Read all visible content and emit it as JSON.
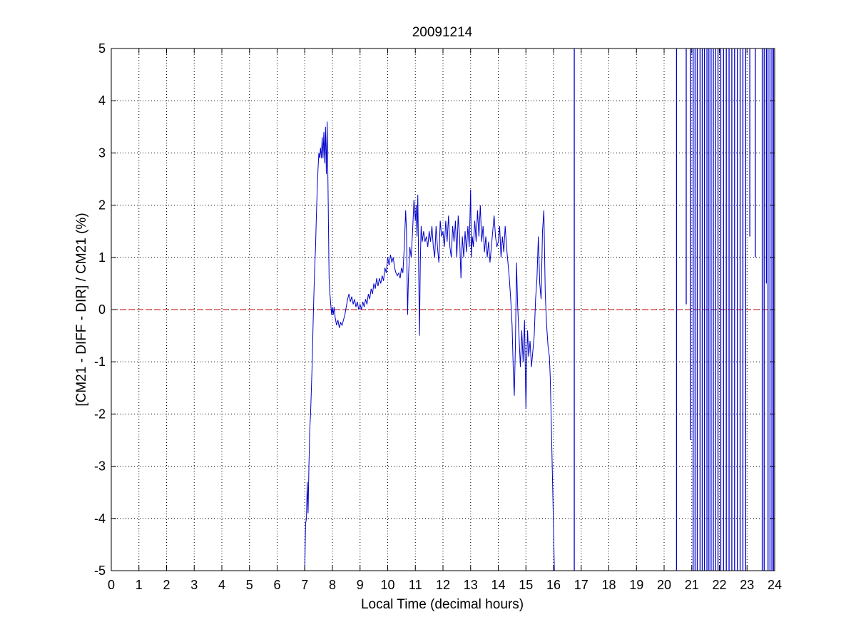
{
  "chart_data": {
    "type": "line",
    "title": "20091214",
    "xlabel": "Local Time (decimal hours)",
    "ylabel": "[CM21 - DIFF - DIR] / CM21 (%)",
    "xlim": [
      0,
      24
    ],
    "ylim": [
      -5,
      5
    ],
    "xticks": [
      0,
      1,
      2,
      3,
      4,
      5,
      6,
      7,
      8,
      9,
      10,
      11,
      12,
      13,
      14,
      15,
      16,
      17,
      18,
      19,
      20,
      21,
      22,
      23,
      24
    ],
    "yticks": [
      5,
      4,
      3,
      2,
      1,
      0,
      -1,
      -2,
      -3,
      -4,
      -5
    ],
    "grid": true,
    "series_color": "#0000cc",
    "zero_line": {
      "y": 0,
      "color": "#cc0000",
      "style": "dashed"
    },
    "series": [
      {
        "values": [
          [
            7.0,
            -5.0
          ],
          [
            7.03,
            -4.1
          ],
          [
            7.06,
            -4.0
          ],
          [
            7.09,
            -3.3
          ],
          [
            7.12,
            -3.9
          ],
          [
            7.15,
            -3.0
          ],
          [
            7.18,
            -2.3
          ],
          [
            7.21,
            -2.0
          ],
          [
            7.24,
            -1.5
          ],
          [
            7.27,
            -1.0
          ],
          [
            7.3,
            -0.3
          ],
          [
            7.33,
            0.3
          ],
          [
            7.36,
            0.8
          ],
          [
            7.39,
            1.2
          ],
          [
            7.42,
            1.8
          ],
          [
            7.45,
            2.3
          ],
          [
            7.48,
            2.7
          ],
          [
            7.51,
            3.0
          ],
          [
            7.54,
            2.9
          ],
          [
            7.57,
            3.1
          ],
          [
            7.6,
            2.9
          ],
          [
            7.63,
            3.3
          ],
          [
            7.66,
            2.9
          ],
          [
            7.69,
            3.4
          ],
          [
            7.72,
            2.8
          ],
          [
            7.75,
            3.5
          ],
          [
            7.78,
            2.6
          ],
          [
            7.81,
            3.6
          ],
          [
            7.84,
            2.4
          ],
          [
            7.86,
            1.5
          ],
          [
            7.88,
            0.6
          ],
          [
            7.91,
            0.3
          ],
          [
            7.94,
            0.1
          ],
          [
            7.97,
            -0.1
          ],
          [
            8.0,
            0.05
          ],
          [
            8.03,
            -0.1
          ],
          [
            8.06,
            0.05
          ],
          [
            8.1,
            -0.15
          ],
          [
            8.15,
            -0.3
          ],
          [
            8.2,
            -0.2
          ],
          [
            8.25,
            -0.35
          ],
          [
            8.3,
            -0.25
          ],
          [
            8.35,
            -0.3
          ],
          [
            8.4,
            -0.2
          ],
          [
            8.45,
            -0.1
          ],
          [
            8.5,
            0.05
          ],
          [
            8.55,
            0.2
          ],
          [
            8.6,
            0.3
          ],
          [
            8.65,
            0.15
          ],
          [
            8.7,
            0.25
          ],
          [
            8.75,
            0.1
          ],
          [
            8.8,
            0.2
          ],
          [
            8.85,
            0.05
          ],
          [
            8.9,
            0.15
          ],
          [
            8.95,
            0.0
          ],
          [
            9.0,
            0.1
          ],
          [
            9.05,
            0.0
          ],
          [
            9.1,
            0.15
          ],
          [
            9.15,
            0.05
          ],
          [
            9.2,
            0.2
          ],
          [
            9.25,
            0.1
          ],
          [
            9.3,
            0.3
          ],
          [
            9.35,
            0.2
          ],
          [
            9.4,
            0.4
          ],
          [
            9.45,
            0.3
          ],
          [
            9.5,
            0.5
          ],
          [
            9.55,
            0.4
          ],
          [
            9.6,
            0.6
          ],
          [
            9.65,
            0.45
          ],
          [
            9.7,
            0.6
          ],
          [
            9.75,
            0.5
          ],
          [
            9.8,
            0.65
          ],
          [
            9.85,
            0.55
          ],
          [
            9.9,
            0.8
          ],
          [
            9.95,
            0.7
          ],
          [
            10.0,
            1.0
          ],
          [
            10.05,
            0.85
          ],
          [
            10.1,
            1.05
          ],
          [
            10.15,
            0.9
          ],
          [
            10.2,
            1.0
          ],
          [
            10.25,
            0.8
          ],
          [
            10.3,
            0.7
          ],
          [
            10.35,
            0.65
          ],
          [
            10.4,
            0.7
          ],
          [
            10.45,
            0.6
          ],
          [
            10.5,
            0.8
          ],
          [
            10.55,
            0.7
          ],
          [
            10.6,
            1.2
          ],
          [
            10.65,
            1.9
          ],
          [
            10.68,
            1.5
          ],
          [
            10.72,
            -0.1
          ],
          [
            10.75,
            0.6
          ],
          [
            10.8,
            1.2
          ],
          [
            10.85,
            1.0
          ],
          [
            10.9,
            1.5
          ],
          [
            10.95,
            2.1
          ],
          [
            11.0,
            1.7
          ],
          [
            11.03,
            2.0
          ],
          [
            11.06,
            1.4
          ],
          [
            11.09,
            2.2
          ],
          [
            11.12,
            0.8
          ],
          [
            11.15,
            -0.5
          ],
          [
            11.18,
            0.9
          ],
          [
            11.21,
            1.6
          ],
          [
            11.25,
            1.3
          ],
          [
            11.3,
            1.5
          ],
          [
            11.35,
            1.3
          ],
          [
            11.4,
            1.4
          ],
          [
            11.45,
            1.2
          ],
          [
            11.5,
            1.5
          ],
          [
            11.55,
            1.3
          ],
          [
            11.6,
            1.6
          ],
          [
            11.65,
            1.2
          ],
          [
            11.7,
            1.0
          ],
          [
            11.75,
            1.6
          ],
          [
            11.8,
            1.2
          ],
          [
            11.85,
            0.9
          ],
          [
            11.9,
            1.7
          ],
          [
            11.95,
            1.4
          ],
          [
            12.0,
            1.5
          ],
          [
            12.05,
            1.2
          ],
          [
            12.1,
            1.7
          ],
          [
            12.15,
            1.3
          ],
          [
            12.2,
            1.8
          ],
          [
            12.25,
            1.2
          ],
          [
            12.3,
            1.0
          ],
          [
            12.35,
            1.6
          ],
          [
            12.4,
            1.3
          ],
          [
            12.45,
            1.7
          ],
          [
            12.5,
            1.0
          ],
          [
            12.55,
            1.8
          ],
          [
            12.6,
            1.4
          ],
          [
            12.65,
            0.6
          ],
          [
            12.7,
            1.4
          ],
          [
            12.75,
            1.0
          ],
          [
            12.8,
            1.5
          ],
          [
            12.85,
            1.1
          ],
          [
            12.9,
            1.6
          ],
          [
            12.95,
            1.2
          ],
          [
            13.0,
            2.3
          ],
          [
            13.03,
            1.0
          ],
          [
            13.06,
            1.4
          ],
          [
            13.1,
            1.2
          ],
          [
            13.15,
            1.7
          ],
          [
            13.2,
            1.3
          ],
          [
            13.25,
            1.9
          ],
          [
            13.3,
            1.4
          ],
          [
            13.35,
            2.0
          ],
          [
            13.4,
            1.3
          ],
          [
            13.45,
            1.6
          ],
          [
            13.5,
            1.1
          ],
          [
            13.55,
            1.4
          ],
          [
            13.6,
            1.0
          ],
          [
            13.65,
            1.3
          ],
          [
            13.7,
            0.9
          ],
          [
            13.75,
            1.2
          ],
          [
            13.8,
            1.5
          ],
          [
            13.85,
            1.8
          ],
          [
            13.9,
            1.4
          ],
          [
            13.95,
            1.2
          ],
          [
            14.0,
            1.3
          ],
          [
            14.05,
            1.6
          ],
          [
            14.1,
            1.0
          ],
          [
            14.15,
            1.4
          ],
          [
            14.2,
            1.1
          ],
          [
            14.25,
            1.6
          ],
          [
            14.3,
            1.2
          ],
          [
            14.35,
            0.9
          ],
          [
            14.4,
            0.6
          ],
          [
            14.45,
            0.2
          ],
          [
            14.5,
            -0.3
          ],
          [
            14.55,
            -1.3
          ],
          [
            14.58,
            -1.65
          ],
          [
            14.62,
            -0.7
          ],
          [
            14.66,
            0.9
          ],
          [
            14.7,
            0.1
          ],
          [
            14.75,
            -0.5
          ],
          [
            14.8,
            -1.1
          ],
          [
            14.85,
            -0.4
          ],
          [
            14.9,
            -1.0
          ],
          [
            14.95,
            -0.2
          ],
          [
            15.0,
            -1.9
          ],
          [
            15.03,
            -1.0
          ],
          [
            15.06,
            -0.4
          ],
          [
            15.1,
            -0.9
          ],
          [
            15.15,
            -0.6
          ],
          [
            15.2,
            -1.1
          ],
          [
            15.25,
            -0.8
          ],
          [
            15.3,
            -0.5
          ],
          [
            15.35,
            0.2
          ],
          [
            15.4,
            0.6
          ],
          [
            15.45,
            1.4
          ],
          [
            15.5,
            0.5
          ],
          [
            15.55,
            0.2
          ],
          [
            15.6,
            1.5
          ],
          [
            15.65,
            1.9
          ],
          [
            15.7,
            0.3
          ],
          [
            15.75,
            -0.3
          ],
          [
            15.8,
            -0.7
          ],
          [
            15.85,
            -0.9
          ],
          [
            15.88,
            -1.3
          ],
          [
            15.92,
            -2.2
          ],
          [
            15.96,
            -3.2
          ],
          [
            16.0,
            -4.2
          ],
          [
            16.03,
            -5.0
          ]
        ]
      }
    ],
    "spikes": [
      {
        "x": 16.75,
        "y_from": -5,
        "y_to": 5
      },
      {
        "x": 20.45,
        "y_from": -5,
        "y_to": 5
      },
      {
        "x": 20.8,
        "y_from": 0.1,
        "y_to": 5
      },
      {
        "x": 20.95,
        "y_from": -2.5,
        "y_to": 5
      },
      {
        "x": 21.05,
        "y_from": -5,
        "y_to": 5
      },
      {
        "x": 21.12,
        "y_from": -5,
        "y_to": 5
      },
      {
        "x": 21.2,
        "y_from": -5,
        "y_to": 5
      },
      {
        "x": 21.3,
        "y_from": -5,
        "y_to": 5
      },
      {
        "x": 21.38,
        "y_from": -5,
        "y_to": 5
      },
      {
        "x": 21.46,
        "y_from": -5,
        "y_to": 5
      },
      {
        "x": 21.55,
        "y_from": -5,
        "y_to": 5
      },
      {
        "x": 21.62,
        "y_from": -5,
        "y_to": 5
      },
      {
        "x": 21.7,
        "y_from": -5,
        "y_to": 5
      },
      {
        "x": 21.78,
        "y_from": -5,
        "y_to": 5
      },
      {
        "x": 21.86,
        "y_from": -5,
        "y_to": 5
      },
      {
        "x": 21.95,
        "y_from": -5,
        "y_to": 5
      },
      {
        "x": 22.05,
        "y_from": -5,
        "y_to": 5
      },
      {
        "x": 22.15,
        "y_from": -5,
        "y_to": 5
      },
      {
        "x": 22.25,
        "y_from": -5,
        "y_to": 5
      },
      {
        "x": 22.35,
        "y_from": -5,
        "y_to": 5
      },
      {
        "x": 22.45,
        "y_from": -5,
        "y_to": 5
      },
      {
        "x": 22.55,
        "y_from": -5,
        "y_to": 5
      },
      {
        "x": 22.65,
        "y_from": -5,
        "y_to": 5
      },
      {
        "x": 22.75,
        "y_from": -5,
        "y_to": 5
      },
      {
        "x": 22.85,
        "y_from": -5,
        "y_to": 5
      },
      {
        "x": 22.95,
        "y_from": -5,
        "y_to": 5
      },
      {
        "x": 23.1,
        "y_from": 1.4,
        "y_to": 5
      },
      {
        "x": 23.3,
        "y_from": 1.0,
        "y_to": 5
      },
      {
        "x": 23.55,
        "y_from": -5,
        "y_to": 5
      },
      {
        "x": 23.62,
        "y_from": -5,
        "y_to": 5
      },
      {
        "x": 23.7,
        "y_from": 0.5,
        "y_to": 5
      },
      {
        "x": 23.76,
        "y_from": -5,
        "y_to": 5
      },
      {
        "x": 23.83,
        "y_from": -5,
        "y_to": 5
      },
      {
        "x": 23.9,
        "y_from": -5,
        "y_to": 5
      },
      {
        "x": 23.96,
        "y_from": -5,
        "y_to": 5
      }
    ]
  }
}
